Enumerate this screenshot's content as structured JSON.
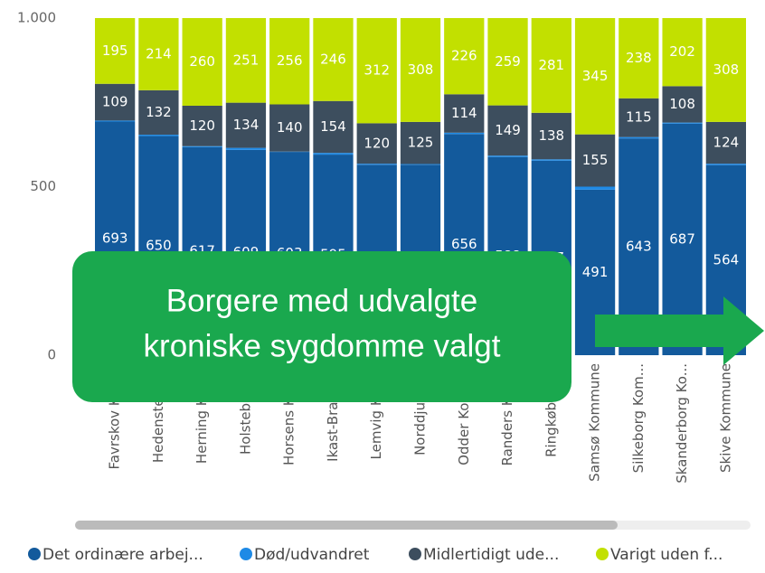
{
  "chart_data": {
    "type": "stacked_bar",
    "categories": [
      "Favrskov Kom...",
      "Hedensted K...",
      "Herning Kom...",
      "Holstebro K...",
      "Horsens Kom...",
      "Ikast-Brande...",
      "Lemvig Kom...",
      "Norddjurs K...",
      "Odder Komm...",
      "Randers Kom...",
      "Ringkøbing-...",
      "Samsø Kommune",
      "Silkeborg Kom...",
      "Skanderborg Ko...",
      "Skive Kommune"
    ],
    "series": [
      {
        "name": "Det ordinære arbej...",
        "color": "#135a9c",
        "values": [
          693,
          650,
          617,
          609,
          603,
          595,
          565,
          565,
          656,
          588,
          577,
          491,
          643,
          687,
          564
        ],
        "labels": true
      },
      {
        "name": "Død/udvandret",
        "color": "#1e8ae6",
        "values": [
          3,
          4,
          3,
          6,
          1,
          5,
          3,
          2,
          4,
          4,
          4,
          9,
          4,
          3,
          4
        ],
        "labels": false
      },
      {
        "name": "Midlertidigt ude...",
        "color": "#3d4e5e",
        "values": [
          109,
          132,
          120,
          134,
          140,
          154,
          120,
          125,
          114,
          149,
          138,
          155,
          115,
          108,
          124
        ],
        "labels": true
      },
      {
        "name": "Varigt uden f...",
        "color": "#c2e000",
        "values": [
          195,
          214,
          260,
          251,
          256,
          246,
          312,
          308,
          226,
          259,
          281,
          345,
          238,
          202,
          308
        ],
        "labels": true
      }
    ],
    "ylim": [
      0,
      1000
    ],
    "yticks": [
      0,
      500,
      {
        "value": 1000,
        "label": "1.000"
      }
    ],
    "annotation": [
      "Borgere med udvalgte",
      "kroniske sygdomme valgt"
    ]
  }
}
